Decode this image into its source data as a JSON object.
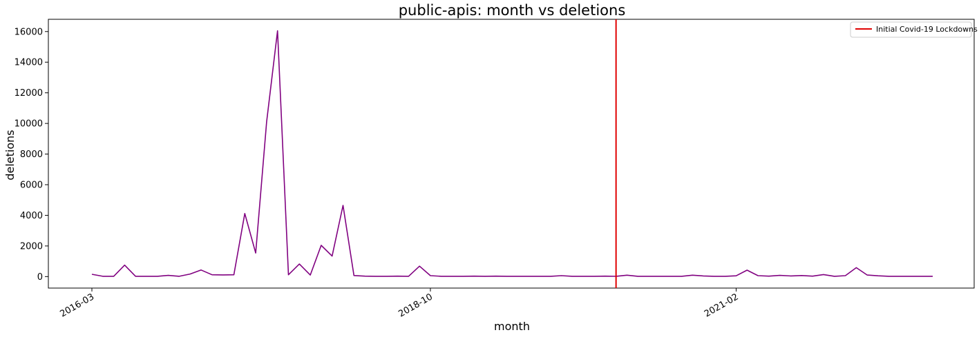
{
  "chart_data": {
    "type": "line",
    "title": "public-apis: month vs deletions",
    "xlabel": "month",
    "ylabel": "deletions",
    "x_tick_labels": [
      "2016-03",
      "2018-10",
      "2021-02"
    ],
    "y_ticks": [
      0,
      2000,
      4000,
      6000,
      8000,
      10000,
      12000,
      14000,
      16000
    ],
    "ylim": [
      -750,
      16800
    ],
    "grid": false,
    "legend_position": "top-right",
    "colors": {
      "series": "#800080",
      "marker_line": "#e00000"
    },
    "x": [
      "2016-03",
      "2016-04",
      "2016-05",
      "2016-06",
      "2016-07",
      "2016-08",
      "2016-09",
      "2016-10",
      "2016-11",
      "2016-12",
      "2017-01",
      "2017-02",
      "2017-03",
      "2017-04",
      "2017-05",
      "2017-06",
      "2017-07",
      "2017-08",
      "2017-09",
      "2017-10",
      "2017-11",
      "2017-12",
      "2018-01",
      "2018-02",
      "2018-03",
      "2018-04",
      "2018-05",
      "2018-06",
      "2018-07",
      "2018-08",
      "2018-09",
      "2018-10",
      "2018-11",
      "2018-12",
      "2019-01",
      "2019-02",
      "2019-03",
      "2019-04",
      "2019-05",
      "2019-06",
      "2019-07",
      "2019-08",
      "2019-09",
      "2019-10",
      "2019-11",
      "2019-12",
      "2020-01",
      "2020-02",
      "2020-03",
      "2020-04",
      "2020-05",
      "2020-06",
      "2020-07",
      "2020-08",
      "2020-09",
      "2020-10",
      "2020-11",
      "2020-12",
      "2021-01",
      "2021-02",
      "2021-03",
      "2021-04",
      "2021-05",
      "2021-06",
      "2021-07",
      "2021-08",
      "2021-09",
      "2021-10",
      "2021-11",
      "2021-12",
      "2022-01",
      "2022-02",
      "2022-03",
      "2022-04",
      "2022-05",
      "2022-06",
      "2022-07",
      "2022-08"
    ],
    "series": [
      {
        "values": [
          150,
          20,
          20,
          750,
          20,
          20,
          20,
          80,
          20,
          170,
          430,
          120,
          110,
          120,
          4120,
          1540,
          10100,
          16050,
          120,
          820,
          100,
          2040,
          1340,
          4650,
          70,
          30,
          20,
          20,
          30,
          20,
          680,
          60,
          20,
          20,
          20,
          30,
          20,
          30,
          20,
          20,
          20,
          20,
          20,
          60,
          20,
          20,
          20,
          30,
          20,
          90,
          20,
          20,
          20,
          20,
          20,
          90,
          40,
          20,
          20,
          50,
          420,
          60,
          30,
          80,
          40,
          70,
          30,
          130,
          20,
          60,
          580,
          100,
          50,
          20,
          20,
          20,
          20,
          20
        ]
      }
    ],
    "events": [
      {
        "label": "Initial Covid-19 Lockdowns",
        "x": "2020-03"
      }
    ]
  }
}
